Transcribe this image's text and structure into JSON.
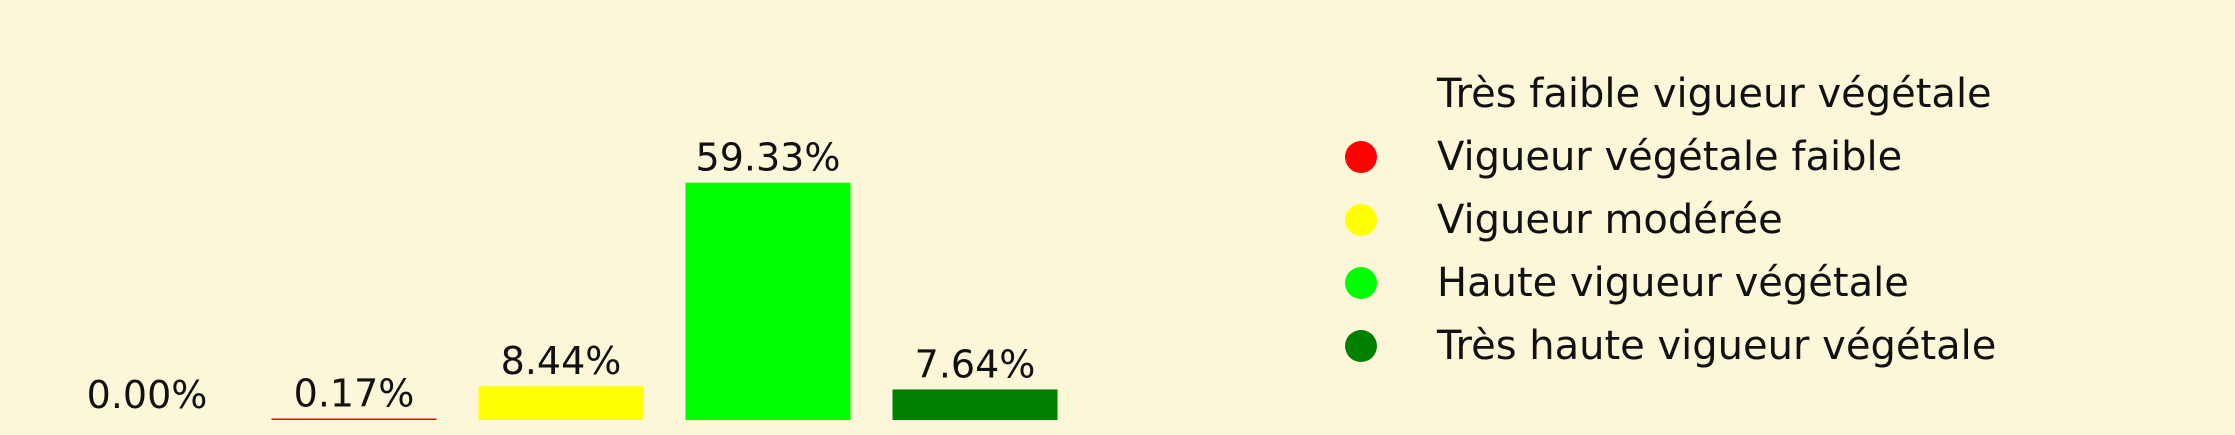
{
  "chart_data": {
    "type": "bar",
    "categories": [
      "Très faible vigueur végétale",
      "Vigueur végétale faible",
      "Vigueur modérée",
      "Haute vigueur végétale",
      "Très haute vigueur végétale"
    ],
    "values": [
      0.0,
      0.17,
      8.44,
      59.33,
      7.64
    ],
    "data_labels": [
      "0.00%",
      "0.17%",
      "8.44%",
      "59.33%",
      "7.64%"
    ],
    "colors": [
      "#fdf7d9",
      "#ff0000",
      "#ffff00",
      "#00ff00",
      "#008000"
    ],
    "ylim": [
      0,
      60
    ],
    "grid": false,
    "legend_position": "right",
    "legend": [
      {
        "label": "Très faible vigueur végétale",
        "color": "#fdf7d9"
      },
      {
        "label": "Vigueur végétale faible",
        "color": "#ff0000"
      },
      {
        "label": "Vigueur modérée",
        "color": "#ffff00"
      },
      {
        "label": "Haute vigueur végétale",
        "color": "#00ff00"
      },
      {
        "label": "Très haute vigueur végétale",
        "color": "#008000"
      }
    ]
  }
}
